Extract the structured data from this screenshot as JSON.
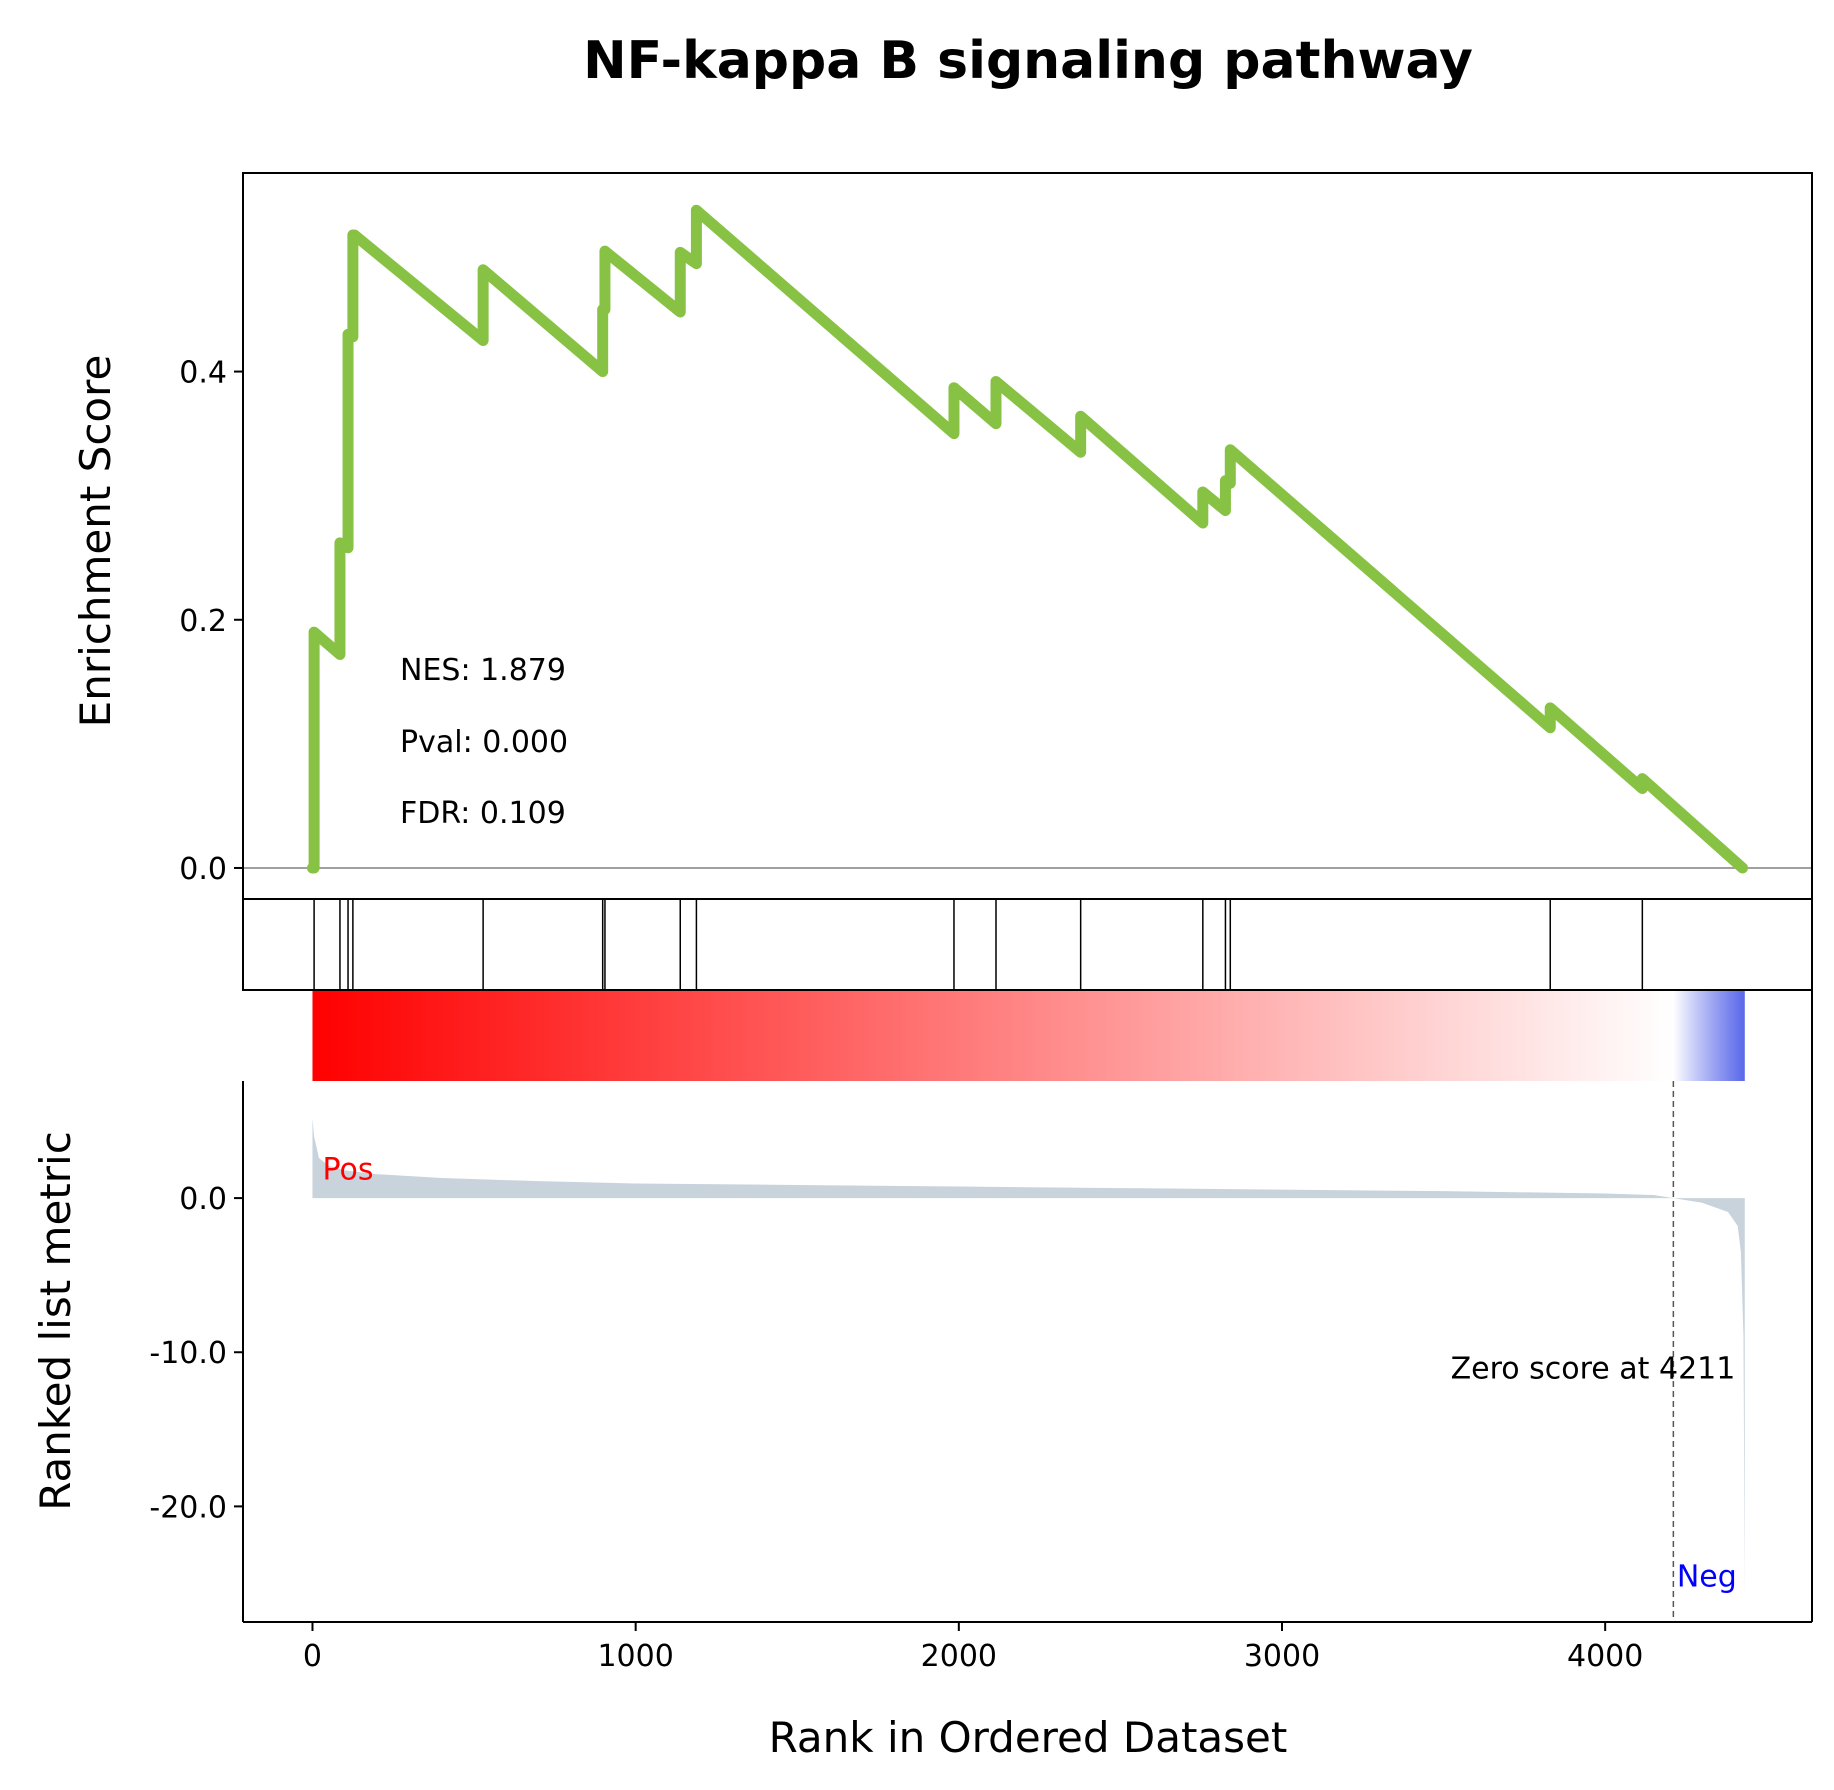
{
  "chart_data": {
    "type": "line",
    "title": "NF-kappa B signaling pathway",
    "xlabel": "Rank in Ordered Dataset",
    "xlim": [
      -215,
      4640
    ],
    "x_ticks": [
      0,
      1000,
      2000,
      3000,
      4000
    ],
    "x_tick_labels": [
      "0",
      "1000",
      "2000",
      "3000",
      "4000"
    ],
    "enrichment": {
      "ylabel": "Enrichment Score",
      "ylim": [
        -0.025,
        0.56
      ],
      "y_ticks": [
        0.0,
        0.2,
        0.4
      ],
      "y_tick_labels": [
        "0.0",
        "0.2",
        "0.4"
      ],
      "color": "#88c244",
      "x": [
        0,
        5,
        5,
        85,
        85,
        110,
        110,
        125,
        125,
        130,
        130,
        528,
        528,
        898,
        898,
        905,
        905,
        1138,
        1138,
        1188,
        1188,
        1985,
        1985,
        2115,
        2115,
        2377,
        2377,
        2755,
        2755,
        2825,
        2825,
        2840,
        2840,
        3830,
        3830,
        4115,
        4115,
        4425
      ],
      "y": [
        0.0,
        0.0,
        0.19,
        0.172,
        0.262,
        0.258,
        0.43,
        0.428,
        0.51,
        0.51,
        0.51,
        0.425,
        0.482,
        0.4,
        0.45,
        0.45,
        0.497,
        0.448,
        0.496,
        0.487,
        0.53,
        0.35,
        0.387,
        0.358,
        0.392,
        0.335,
        0.364,
        0.278,
        0.303,
        0.288,
        0.312,
        0.31,
        0.337,
        0.113,
        0.129,
        0.064,
        0.072,
        0.0
      ]
    },
    "hits": [
      5,
      85,
      110,
      125,
      528,
      898,
      905,
      1138,
      1188,
      1985,
      2115,
      2377,
      2755,
      2825,
      2840,
      3830,
      4115
    ],
    "ranked_metric": {
      "ylabel": "Ranked list metric",
      "ylim": [
        -27.5,
        13.5
      ],
      "y_ticks": [
        0.0,
        -10.0,
        -20.0
      ],
      "y_tick_labels": [
        "0.0",
        "-10.0",
        "-20.0"
      ],
      "fill_color": "#c9d3dc",
      "x": [
        0,
        5,
        20,
        50,
        100,
        200,
        400,
        700,
        1000,
        1500,
        2000,
        2500,
        3000,
        3500,
        4000,
        4150,
        4211,
        4300,
        4380,
        4410,
        4420,
        4428,
        4432
      ],
      "y": [
        5.2,
        4.0,
        2.6,
        2.1,
        1.8,
        1.55,
        1.3,
        1.1,
        0.95,
        0.85,
        0.75,
        0.65,
        0.55,
        0.45,
        0.3,
        0.2,
        0.0,
        -0.3,
        -0.9,
        -1.8,
        -3.5,
        -9.0,
        -26.0
      ],
      "pos_label": "Pos",
      "neg_label": "Neg",
      "zero_score_rank": 4211,
      "zero_score_label": "Zero score at 4211"
    },
    "stats": {
      "nes": "NES: 1.879",
      "pval": "Pval: 0.000",
      "fdr": "FDR: 0.109"
    },
    "gradient": {
      "start_color": "#ff0000",
      "mid_color": "#ffffff",
      "end_color": "#3d4ee6",
      "zero_rank": 4211,
      "end_rank": 4432
    }
  }
}
